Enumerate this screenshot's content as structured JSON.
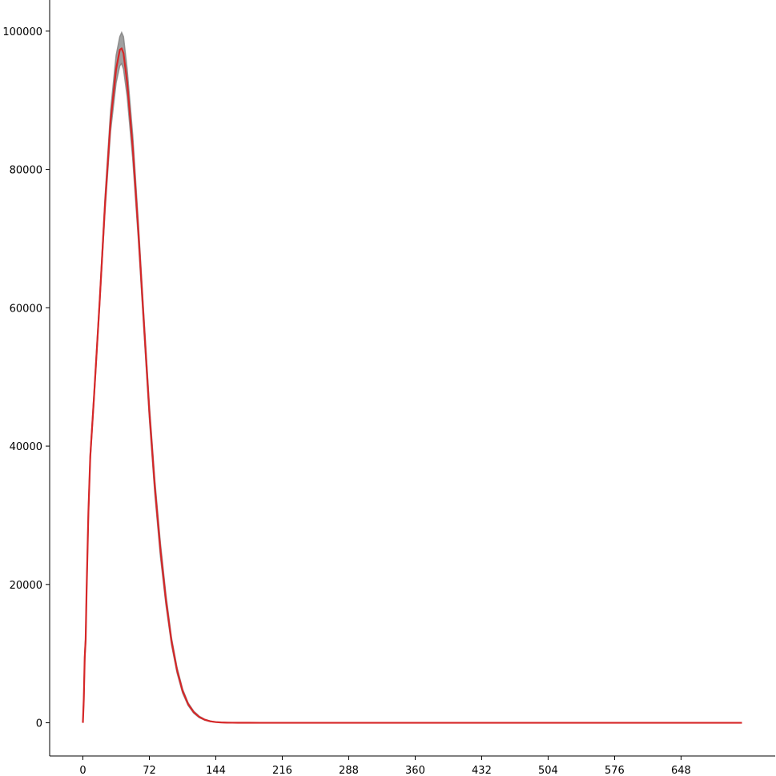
{
  "chart_data": {
    "type": "line",
    "title": "",
    "xlabel": "",
    "ylabel": "",
    "xlim": [
      -36,
      750
    ],
    "ylim": [
      -4800,
      104500
    ],
    "xticks": [
      0,
      72,
      144,
      216,
      288,
      360,
      432,
      504,
      576,
      648
    ],
    "yticks": [
      0,
      20000,
      40000,
      60000,
      80000,
      100000
    ],
    "grid": false,
    "legend": "none",
    "spines": [
      "left",
      "bottom"
    ],
    "colors": {
      "mean": "#d62728",
      "ensemble": "#808080"
    },
    "ensemble_band": {
      "x": [
        0,
        1,
        2,
        3,
        4,
        6,
        8,
        12,
        18,
        24,
        30,
        36,
        40,
        42,
        44,
        48,
        54,
        60,
        66,
        72,
        78,
        84,
        90,
        96,
        102,
        108,
        114,
        120,
        126,
        132,
        138,
        144,
        150,
        156,
        162,
        168,
        180,
        192,
        204,
        216,
        240,
        288,
        360,
        432,
        504,
        576,
        648,
        714
      ],
      "lower": [
        0,
        3000,
        9000,
        11500,
        18500,
        30000,
        38000,
        46500,
        60000,
        74000,
        85500,
        92500,
        95000,
        95300,
        94500,
        90500,
        81500,
        70000,
        57000,
        44000,
        33000,
        24000,
        17000,
        11300,
        7200,
        4300,
        2500,
        1400,
        750,
        380,
        180,
        85,
        40,
        18,
        8,
        3,
        1,
        0,
        0,
        0,
        0,
        0,
        0,
        0,
        0,
        0,
        0,
        0
      ],
      "upper": [
        0,
        4000,
        10000,
        12500,
        19500,
        31000,
        39000,
        47500,
        61000,
        76000,
        88500,
        96500,
        99200,
        99800,
        99200,
        94500,
        85000,
        72500,
        59000,
        46000,
        35000,
        26000,
        18500,
        12300,
        8000,
        4900,
        2900,
        1700,
        950,
        500,
        250,
        120,
        60,
        28,
        12,
        5,
        2,
        0,
        0,
        0,
        0,
        0,
        0,
        0,
        0,
        0,
        0,
        0
      ]
    },
    "series": [
      {
        "x": [
          0,
          1,
          2,
          3,
          4,
          6,
          8,
          12,
          18,
          24,
          30,
          36,
          40,
          42,
          44,
          48,
          54,
          60,
          66,
          72,
          78,
          84,
          90,
          96,
          102,
          108,
          114,
          120,
          126,
          132,
          138,
          144,
          150,
          156,
          162,
          168,
          180,
          192,
          204,
          216,
          240,
          288,
          360,
          432,
          504,
          576,
          648,
          714
        ],
        "values": [
          0,
          3500,
          9500,
          12000,
          19000,
          30500,
          38500,
          47000,
          60500,
          75000,
          87000,
          94500,
          97300,
          97500,
          96800,
          92500,
          83200,
          71200,
          58000,
          45000,
          34000,
          25000,
          17700,
          11800,
          7600,
          4600,
          2700,
          1550,
          850,
          440,
          215,
          100,
          48,
          22,
          10,
          4,
          1,
          0,
          0,
          0,
          0,
          0,
          0,
          0,
          0,
          0,
          0,
          0
        ]
      }
    ]
  }
}
